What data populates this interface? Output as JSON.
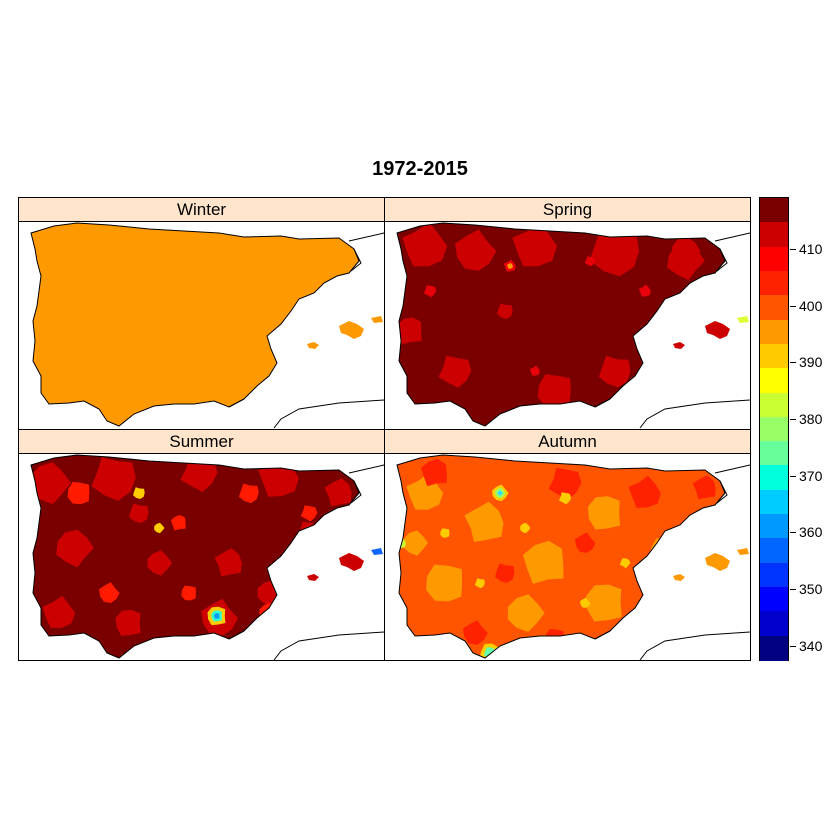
{
  "title": "1972-2015",
  "panels": [
    {
      "name": "Winter",
      "palette": [
        "#ff9900",
        "#ff9900",
        "#ff9900"
      ]
    },
    {
      "name": "Spring",
      "palette": [
        "#7a0000",
        "#cc0000",
        "#e8000a"
      ]
    },
    {
      "name": "Summer",
      "palette": [
        "#7a0000",
        "#cc0000",
        "#ff1a00"
      ]
    },
    {
      "name": "Autumn",
      "palette": [
        "#ff5500",
        "#ff9900",
        "#ff2200"
      ]
    }
  ],
  "legend": {
    "colors": [
      "#000080",
      "#0000cc",
      "#0000ff",
      "#0033ff",
      "#0066ff",
      "#0099ff",
      "#00ccff",
      "#00ffdd",
      "#66ff99",
      "#99ff66",
      "#ccff33",
      "#ffff00",
      "#ffcc00",
      "#ff9900",
      "#ff5500",
      "#ff2200",
      "#ff0000",
      "#cc0000",
      "#7a0000"
    ],
    "ticks": [
      "340",
      "350",
      "360",
      "370",
      "380",
      "390",
      "400",
      "410"
    ],
    "range": [
      337.5,
      419
    ]
  }
}
